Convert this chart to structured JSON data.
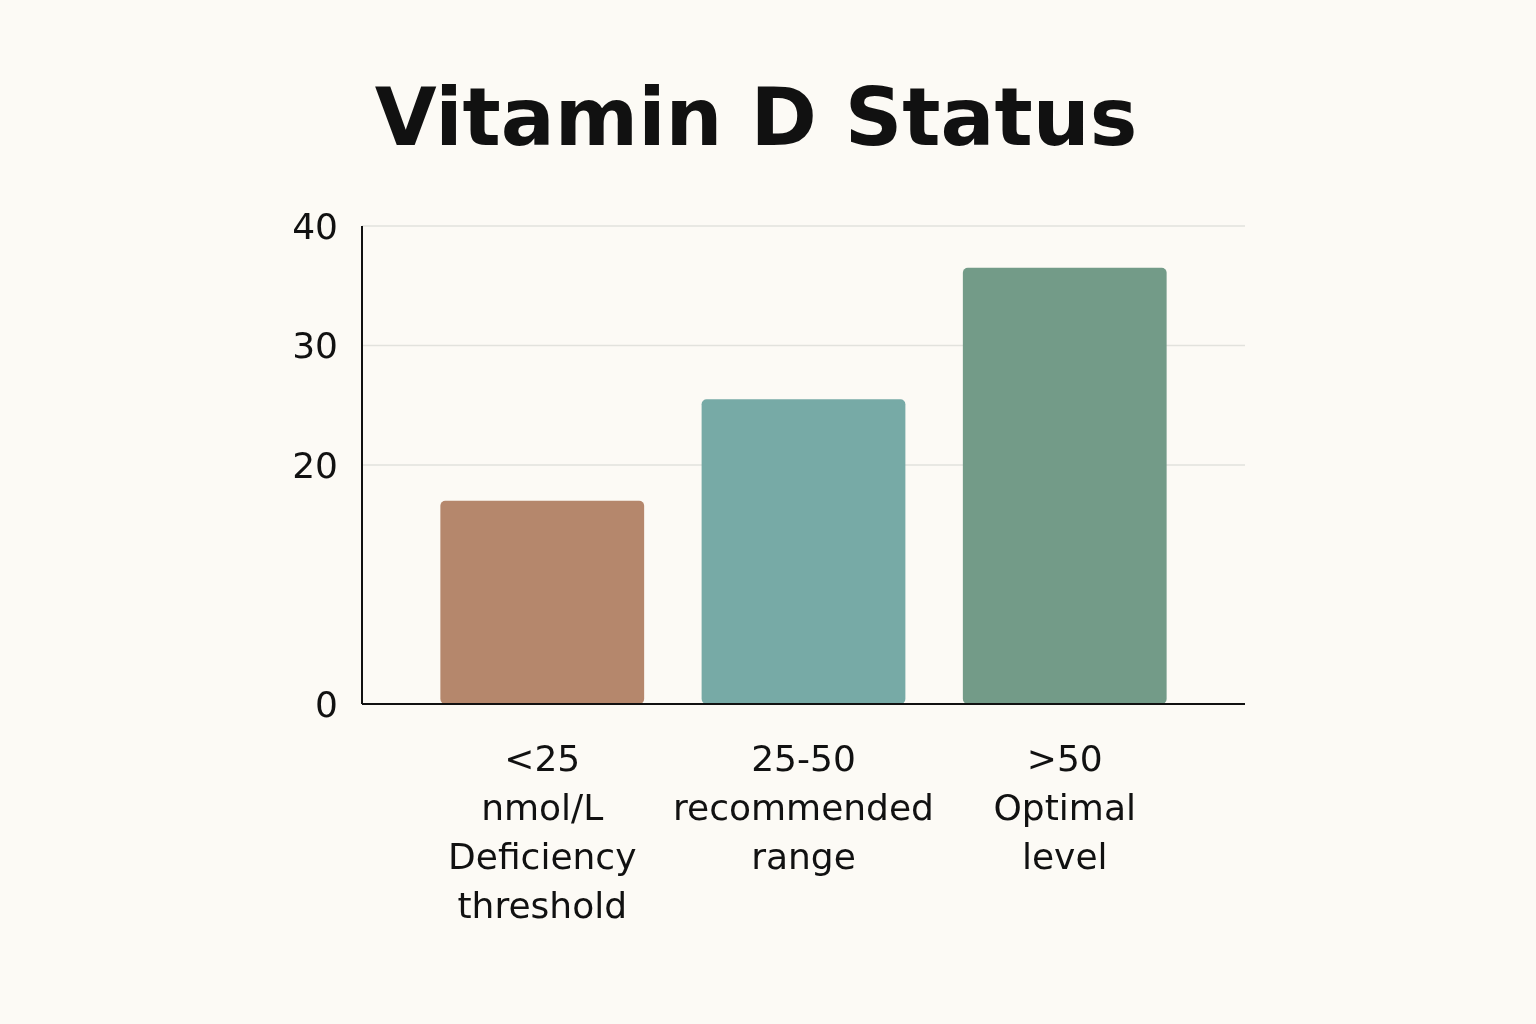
{
  "chart_data": {
    "type": "bar",
    "title": "Vitamin D Status",
    "categories": [
      "<25\nnmol/L\nDeficiency\nthreshold",
      "25-50\nrecommended\nrange",
      ">50\nOptimal\nlevel"
    ],
    "values": [
      17,
      25.5,
      36.5
    ],
    "colors": [
      "#b5876c",
      "#77aaa6",
      "#739b88"
    ],
    "ylim": [
      0,
      40
    ],
    "yticks": [
      0,
      20,
      30,
      40
    ],
    "grid": "y"
  }
}
